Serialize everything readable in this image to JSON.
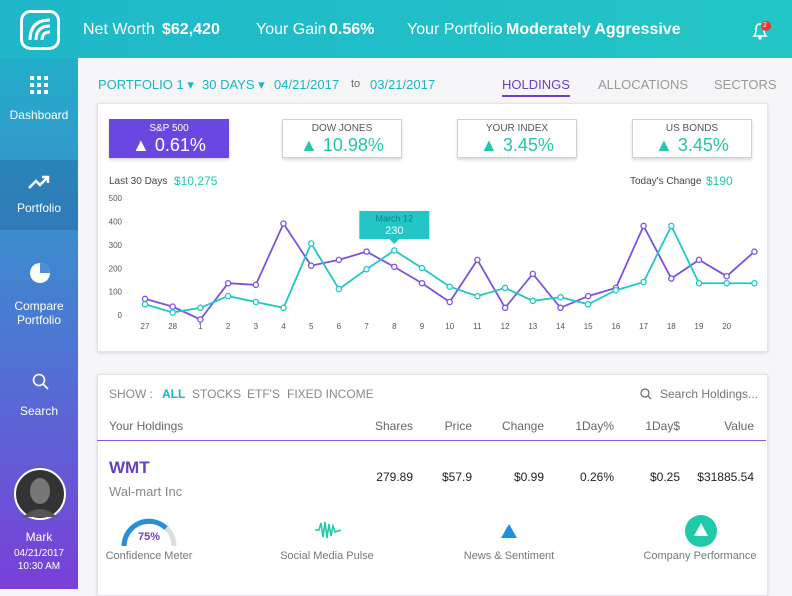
{
  "header": {
    "net_worth_label": "Net Worth",
    "net_worth": "$62,420",
    "gain_label": "Your Gain",
    "gain": "0.56%",
    "portfolio_label": "Your Portfolio",
    "portfolio": "Moderately Aggressive",
    "notifications": "2"
  },
  "sidebar": {
    "nav": [
      "Dashboard",
      "Portfolio",
      "Compare Portfolio",
      "Search"
    ],
    "user": {
      "name": "Mark",
      "date": "04/21/2017",
      "time": "10:30 AM"
    }
  },
  "filters": {
    "portfolio": "PORTFOLIO 1",
    "period": "30 DAYS",
    "from": "04/21/2017",
    "to_label": "to",
    "to": "03/21/2017"
  },
  "tabs": [
    "HOLDINGS",
    "ALLOCATIONS",
    "SECTORS"
  ],
  "indices": [
    {
      "name": "S&P 500",
      "value": "0.61%"
    },
    {
      "name": "DOW JONES",
      "value": "10.98%"
    },
    {
      "name": "YOUR INDEX",
      "value": "3.45%"
    },
    {
      "name": "US BONDS",
      "value": "3.45%"
    }
  ],
  "summary": {
    "last_label": "Last 30 Days",
    "last_value": "$10,275",
    "today_label": "Today's Change",
    "today_value": "$190"
  },
  "chart_data": {
    "type": "line",
    "categories": [
      "27",
      "28",
      "1",
      "2",
      "3",
      "4",
      "5",
      "6",
      "7",
      "8",
      "9",
      "10",
      "11",
      "12",
      "13",
      "14",
      "15",
      "16",
      "17",
      "18",
      "19",
      "20",
      null
    ],
    "series": [
      {
        "color": "#7b52e0",
        "values": [
          73,
          40,
          -15,
          140,
          133,
          395,
          215,
          240,
          275,
          210,
          140,
          60,
          240,
          35,
          180,
          35,
          85,
          120,
          385,
          160,
          240,
          170,
          275
        ]
      },
      {
        "color": "#20c8c2",
        "values": [
          50,
          15,
          35,
          85,
          60,
          35,
          310,
          115,
          200,
          280,
          205,
          125,
          85,
          120,
          65,
          80,
          50,
          110,
          145,
          385,
          140,
          140,
          140
        ]
      }
    ],
    "ylim": [
      -30,
      500
    ],
    "yticks": [
      0,
      100,
      200,
      300,
      400,
      500
    ],
    "tooltip": {
      "label": "March 12",
      "value": 230
    }
  },
  "holdings": {
    "show_label": "SHOW :",
    "filters": [
      "ALL",
      "STOCKS",
      "ETF'S",
      "FIXED INCOME"
    ],
    "search": "Search Holdings...",
    "columns": [
      "Your Holdings",
      "Shares",
      "Price",
      "Change",
      "1Day%",
      "1Day$",
      "Value"
    ],
    "rows": [
      {
        "ticker": "WMT",
        "name": "Wal-mart Inc",
        "cells": [
          "279.89",
          "$57.9",
          "$0.99",
          "0.26%",
          "$0.25",
          "$31885.54"
        ],
        "meters": {
          "confidence_value": "75%",
          "labels": [
            "Confidence Meter",
            "Social Media Pulse",
            "News & Sentiment",
            "Company Performance"
          ]
        }
      }
    ]
  }
}
